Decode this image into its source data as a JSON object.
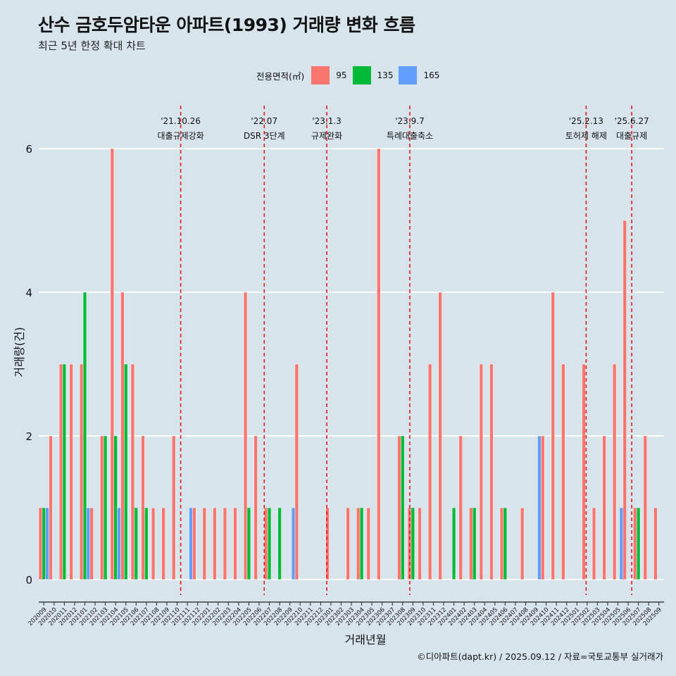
{
  "title": "산수 금호두암타운 아파트(1993) 거래량 변화 흐름",
  "subtitle": "최근 5년 한정 확대 차트",
  "caption": "©디아파트(dapt.kr) / 2025.09.12 / 자료=국토교통부 실거래가",
  "legend": {
    "title": "전용면적(㎡)",
    "items": [
      {
        "label": "95",
        "color": "#f8766d"
      },
      {
        "label": "135",
        "color": "#00ba38"
      },
      {
        "label": "165",
        "color": "#619cff"
      }
    ]
  },
  "chart_data": {
    "type": "bar",
    "xlabel": "거래년월",
    "ylabel": "거래량(건)",
    "ylim": [
      0,
      6
    ],
    "yticks": [
      "0",
      "2",
      "4",
      "6"
    ],
    "grid": true,
    "legend_position": "top",
    "categories": [
      "202009",
      "202010",
      "202011",
      "202012",
      "202101",
      "202102",
      "202103",
      "202104",
      "202105",
      "202106",
      "202107",
      "202108",
      "202109",
      "202110",
      "202111",
      "202112",
      "202201",
      "202202",
      "202203",
      "202204",
      "202205",
      "202206",
      "202207",
      "202208",
      "202209",
      "202210",
      "202211",
      "202212",
      "202301",
      "202302",
      "202303",
      "202304",
      "202305",
      "202306",
      "202307",
      "202308",
      "202309",
      "202310",
      "202311",
      "202312",
      "202401",
      "202402",
      "202403",
      "202404",
      "202405",
      "202406",
      "202407",
      "202408",
      "202409",
      "202410",
      "202411",
      "202412",
      "202501",
      "202502",
      "202503",
      "202504",
      "202505",
      "202506",
      "202507",
      "202508",
      "202509"
    ],
    "series": [
      {
        "name": "95",
        "color": "#f8766d",
        "values": [
          1,
          2,
          3,
          3,
          3,
          1,
          2,
          6,
          4,
          3,
          2,
          1,
          1,
          2,
          0,
          1,
          1,
          1,
          1,
          1,
          4,
          2,
          1,
          0,
          0,
          3,
          0,
          0,
          1,
          0,
          1,
          1,
          1,
          6,
          0,
          2,
          1,
          1,
          3,
          4,
          0,
          2,
          1,
          3,
          3,
          1,
          0,
          1,
          0,
          2,
          4,
          3,
          0,
          3,
          1,
          2,
          3,
          5,
          1,
          2,
          1
        ]
      },
      {
        "name": "135",
        "color": "#00ba38",
        "values": [
          1,
          0,
          3,
          0,
          4,
          0,
          2,
          2,
          3,
          1,
          1,
          0,
          0,
          0,
          0,
          0,
          0,
          0,
          0,
          0,
          1,
          0,
          1,
          1,
          0,
          0,
          0,
          0,
          0,
          0,
          0,
          1,
          0,
          0,
          0,
          2,
          1,
          0,
          0,
          0,
          1,
          0,
          1,
          0,
          0,
          1,
          0,
          0,
          0,
          0,
          0,
          0,
          0,
          0,
          0,
          0,
          0,
          0,
          1,
          0,
          0
        ]
      },
      {
        "name": "165",
        "color": "#619cff",
        "values": [
          1,
          0,
          0,
          0,
          1,
          0,
          0,
          1,
          0,
          0,
          0,
          0,
          0,
          0,
          1,
          0,
          0,
          0,
          0,
          0,
          0,
          0,
          0,
          0,
          1,
          0,
          0,
          0,
          0,
          0,
          0,
          0,
          0,
          0,
          0,
          0,
          0,
          0,
          0,
          0,
          0,
          0,
          0,
          0,
          0,
          0,
          0,
          0,
          2,
          0,
          0,
          0,
          0,
          0,
          0,
          0,
          1,
          0,
          0,
          0,
          0
        ]
      }
    ],
    "annotations": [
      {
        "date": "'21.10.26",
        "text": "대출규제강화",
        "month": "202110",
        "pos": 0.85
      },
      {
        "date": "'22.07",
        "text": "DSR 3단계",
        "month": "202207",
        "pos": 0.0
      },
      {
        "date": "'23.1.3",
        "text": "규제완화",
        "month": "202301",
        "pos": 0.1
      },
      {
        "date": "'23.9.7",
        "text": "특례대출축소",
        "month": "202309",
        "pos": 0.2
      },
      {
        "date": "'25.2.13",
        "text": "토허제 해제",
        "month": "202502",
        "pos": 0.4
      },
      {
        "date": "'25.6.27",
        "text": "대출규제",
        "month": "202506",
        "pos": 0.85
      }
    ]
  }
}
